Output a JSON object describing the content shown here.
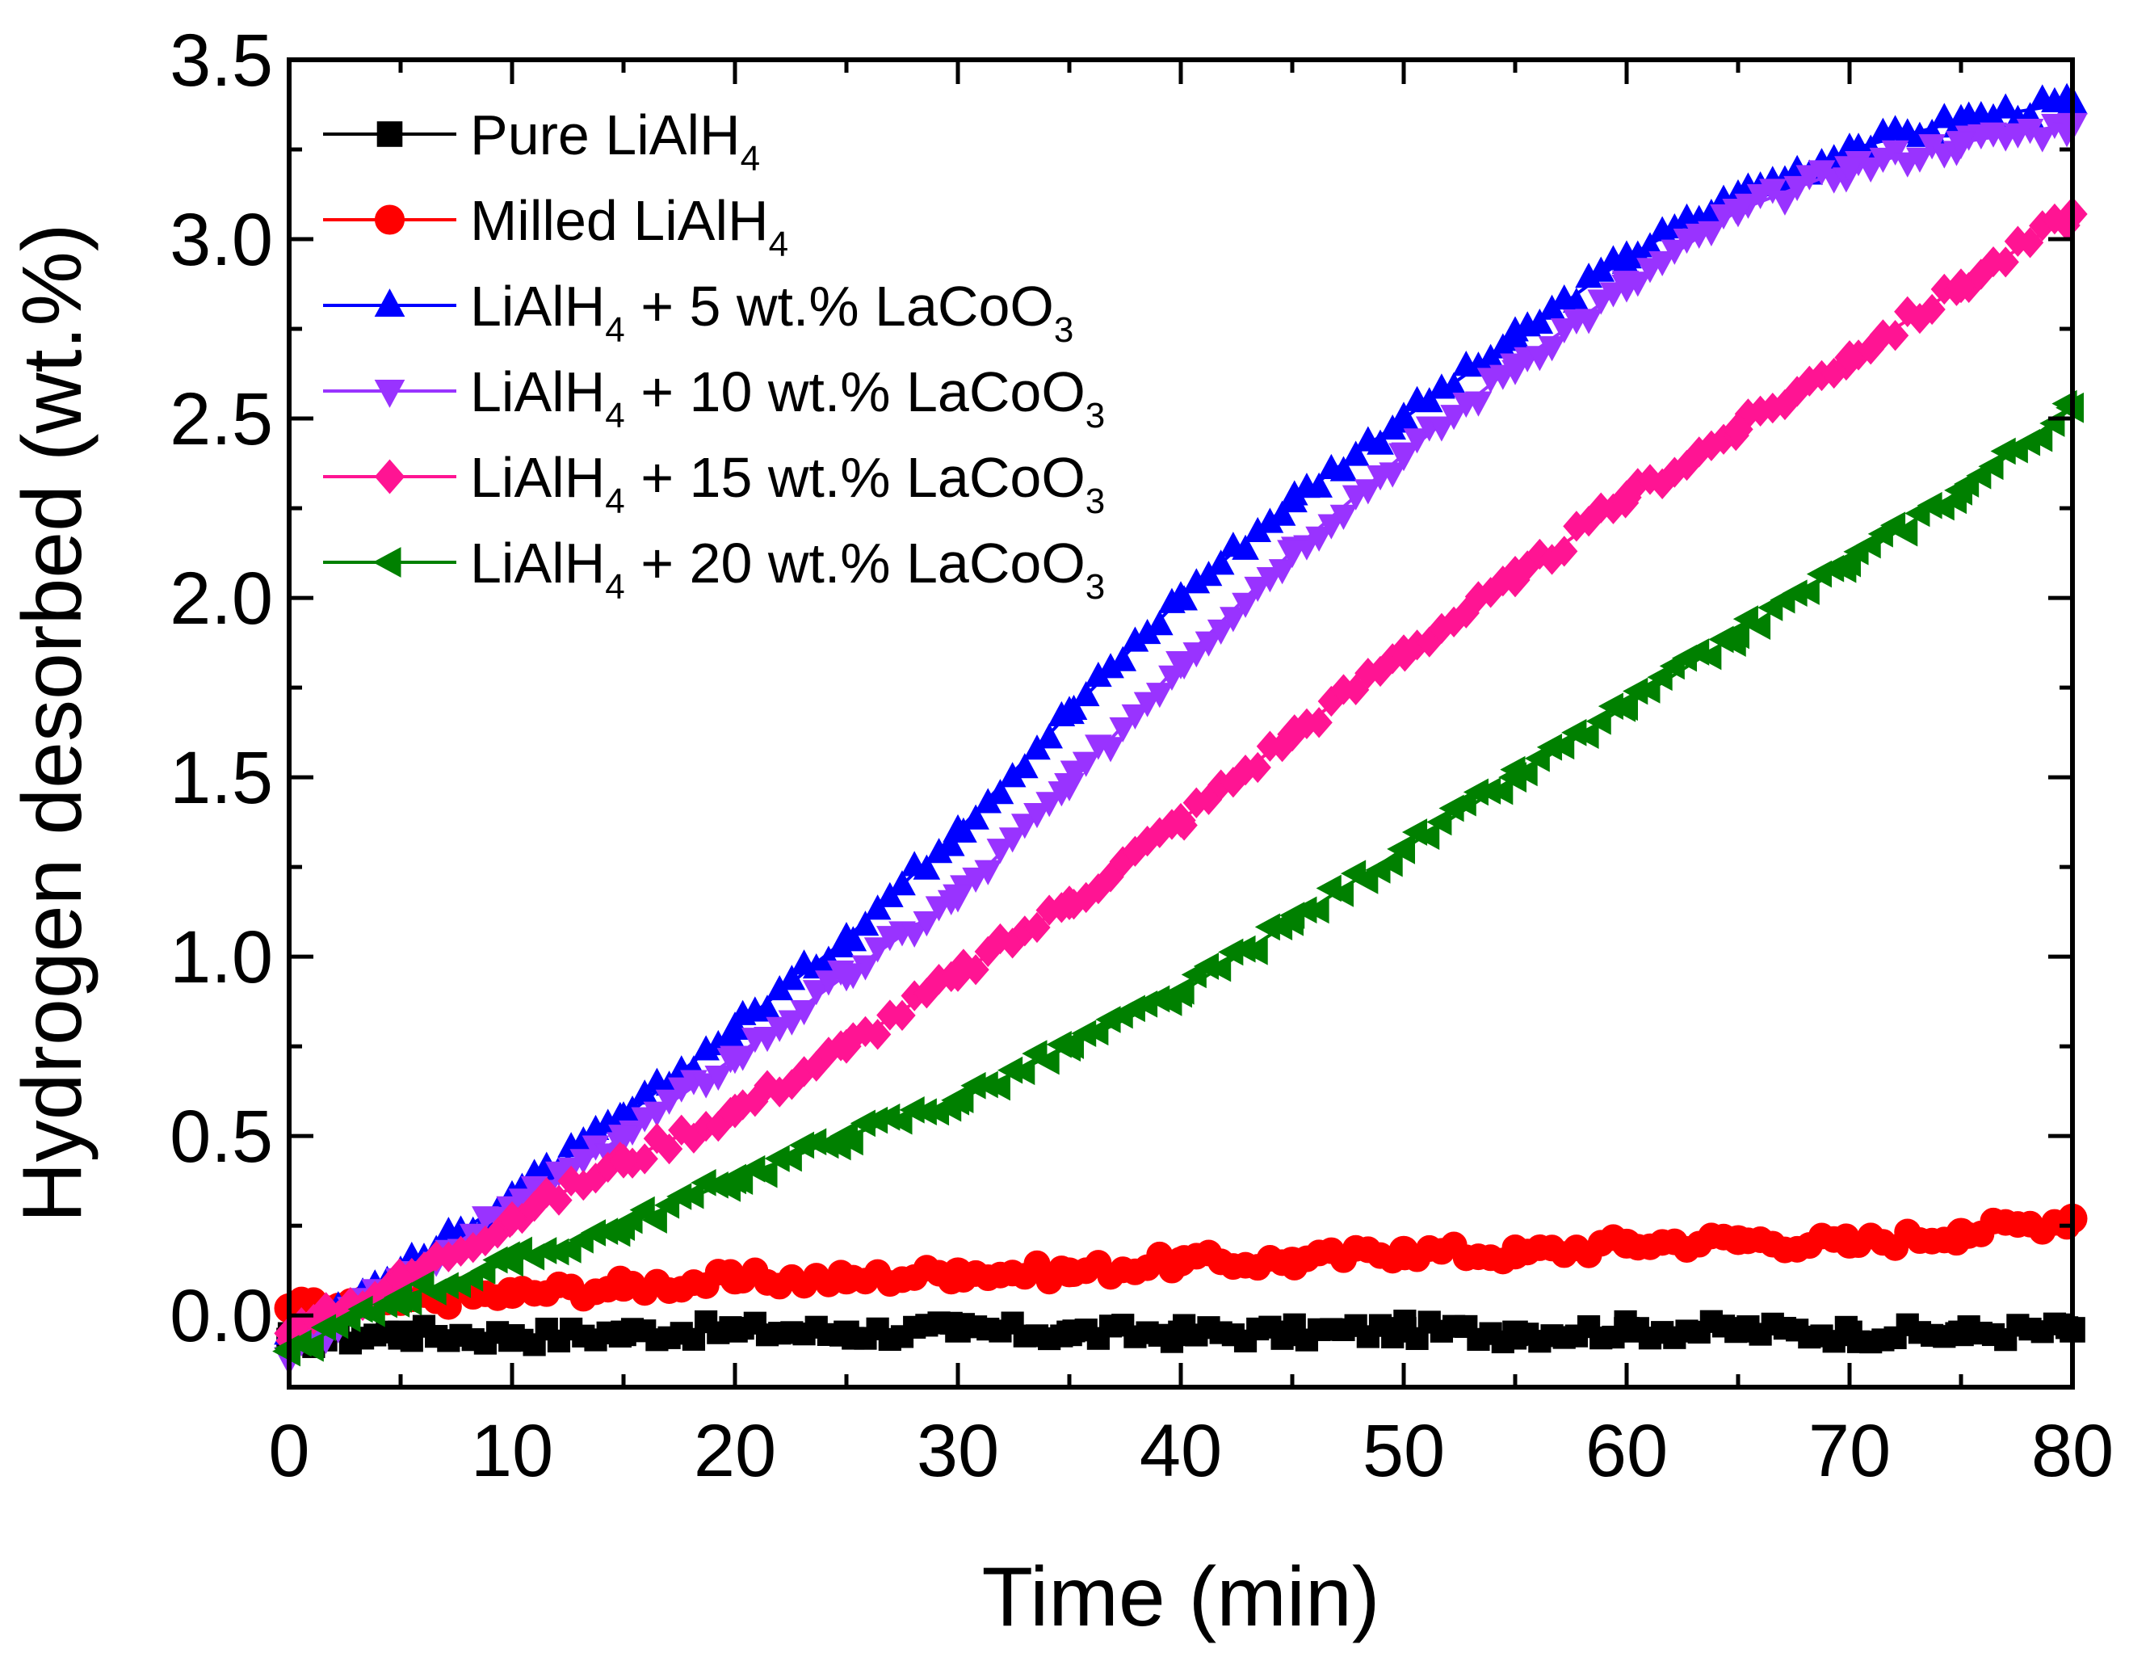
{
  "chart_data": {
    "type": "line",
    "title": "",
    "xlabel": "Time (min)",
    "ylabel": "Hydrogen desorbed (wt.%)",
    "xlim": [
      0,
      80
    ],
    "ylim": [
      -0.2,
      3.5
    ],
    "xticks": [
      0,
      10,
      20,
      30,
      40,
      50,
      60,
      70,
      80
    ],
    "yticks": [
      0.0,
      0.5,
      1.0,
      1.5,
      2.0,
      2.5,
      3.0,
      3.5
    ],
    "xtick_labels": [
      "0",
      "10",
      "20",
      "30",
      "40",
      "50",
      "60",
      "70",
      "80"
    ],
    "ytick_labels": [
      "0.0",
      "0.5",
      "1.0",
      "1.5",
      "2.0",
      "2.5",
      "3.0",
      "3.5"
    ],
    "grid": false,
    "legend_position": "top-left",
    "series": [
      {
        "name": "Pure LiAlH4",
        "legend": [
          "Pure LiAlH",
          "4",
          ""
        ],
        "color": "#000000",
        "marker": "square",
        "x": [
          0,
          5,
          10,
          15,
          20,
          25,
          30,
          35,
          40,
          45,
          50,
          55,
          60,
          65,
          70,
          75,
          80
        ],
        "y": [
          -0.07,
          -0.05,
          -0.06,
          -0.05,
          -0.04,
          -0.05,
          -0.04,
          -0.05,
          -0.05,
          -0.05,
          -0.04,
          -0.05,
          -0.04,
          -0.04,
          -0.05,
          -0.05,
          -0.04
        ]
      },
      {
        "name": "Milled LiAlH4",
        "legend": [
          "Milled LiAlH",
          "4",
          ""
        ],
        "color": "#ff0000",
        "marker": "circle",
        "x": [
          0,
          5,
          10,
          15,
          20,
          25,
          30,
          35,
          40,
          45,
          50,
          55,
          60,
          65,
          70,
          75,
          80
        ],
        "y": [
          0.02,
          0.04,
          0.06,
          0.08,
          0.1,
          0.1,
          0.12,
          0.12,
          0.15,
          0.15,
          0.18,
          0.17,
          0.2,
          0.21,
          0.2,
          0.23,
          0.27
        ]
      },
      {
        "name": "LiAlH4 + 5 wt.% LaCoO3",
        "legend": [
          "LiAlH",
          "4",
          " + 5 wt.% LaCoO",
          "3"
        ],
        "color": "#0000ff",
        "marker": "triangle-up",
        "x": [
          0,
          5,
          10,
          15,
          20,
          25,
          30,
          35,
          40,
          45,
          50,
          55,
          60,
          65,
          70,
          75,
          80
        ],
        "y": [
          -0.05,
          0.12,
          0.33,
          0.55,
          0.8,
          1.05,
          1.35,
          1.68,
          2.0,
          2.27,
          2.5,
          2.72,
          2.95,
          3.12,
          3.25,
          3.33,
          3.38
        ]
      },
      {
        "name": "LiAlH4 + 10 wt.% LaCoO3",
        "legend": [
          "LiAlH",
          "4",
          " + 10 wt.% LaCoO",
          "3"
        ],
        "color": "#9933ff",
        "marker": "triangle-down",
        "x": [
          0,
          5,
          10,
          15,
          20,
          25,
          30,
          35,
          40,
          45,
          50,
          55,
          60,
          65,
          70,
          75,
          80
        ],
        "y": [
          -0.12,
          0.1,
          0.3,
          0.5,
          0.72,
          0.95,
          1.17,
          1.48,
          1.82,
          2.13,
          2.4,
          2.65,
          2.87,
          3.08,
          3.2,
          3.27,
          3.32
        ]
      },
      {
        "name": "LiAlH4 + 15 wt.% LaCoO3",
        "legend": [
          "LiAlH",
          "4",
          " + 15 wt.% LaCoO",
          "3"
        ],
        "color": "#ff1493",
        "marker": "diamond",
        "x": [
          0,
          5,
          10,
          15,
          20,
          25,
          30,
          35,
          40,
          45,
          50,
          55,
          60,
          65,
          70,
          75,
          80
        ],
        "y": [
          -0.05,
          0.1,
          0.27,
          0.43,
          0.57,
          0.75,
          0.95,
          1.15,
          1.38,
          1.62,
          1.85,
          2.05,
          2.28,
          2.47,
          2.67,
          2.87,
          3.07
        ]
      },
      {
        "name": "LiAlH4 + 20 wt.% LaCoO3",
        "legend": [
          "LiAlH",
          "4",
          " + 20 wt.% LaCoO",
          "3"
        ],
        "color": "#008000",
        "marker": "triangle-left",
        "x": [
          0,
          5,
          10,
          15,
          20,
          25,
          30,
          35,
          40,
          45,
          50,
          55,
          60,
          65,
          70,
          75,
          80
        ],
        "y": [
          -0.1,
          0.05,
          0.15,
          0.25,
          0.38,
          0.5,
          0.6,
          0.75,
          0.9,
          1.1,
          1.3,
          1.5,
          1.7,
          1.9,
          2.1,
          2.3,
          2.53
        ]
      }
    ]
  }
}
